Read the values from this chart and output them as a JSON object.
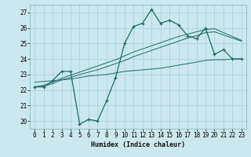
{
  "title": "",
  "xlabel": "Humidex (Indice chaleur)",
  "x": [
    0,
    1,
    2,
    3,
    4,
    5,
    6,
    7,
    8,
    9,
    10,
    11,
    12,
    13,
    14,
    15,
    16,
    17,
    18,
    19,
    20,
    21,
    22,
    23
  ],
  "y_main": [
    22.2,
    22.2,
    22.6,
    23.2,
    23.2,
    19.8,
    20.1,
    20.0,
    21.3,
    22.8,
    25.0,
    26.1,
    26.3,
    27.2,
    26.3,
    26.5,
    26.2,
    25.5,
    25.3,
    26.0,
    24.3,
    24.6,
    24.0,
    24.0
  ],
  "y_line1": [
    22.2,
    22.25,
    22.4,
    22.65,
    22.8,
    23.0,
    23.15,
    23.3,
    23.5,
    23.7,
    23.9,
    24.15,
    24.35,
    24.55,
    24.75,
    24.95,
    25.15,
    25.35,
    25.5,
    25.7,
    25.75,
    25.55,
    25.35,
    25.15
  ],
  "y_line2": [
    22.2,
    22.3,
    22.5,
    22.75,
    22.95,
    23.15,
    23.35,
    23.55,
    23.75,
    23.95,
    24.2,
    24.45,
    24.65,
    24.85,
    25.05,
    25.25,
    25.45,
    25.6,
    25.75,
    25.9,
    25.95,
    25.7,
    25.45,
    25.2
  ],
  "y_flat": [
    22.5,
    22.55,
    22.6,
    22.65,
    22.7,
    22.8,
    22.9,
    22.95,
    23.0,
    23.1,
    23.2,
    23.25,
    23.3,
    23.35,
    23.4,
    23.5,
    23.6,
    23.7,
    23.8,
    23.9,
    23.95,
    23.95,
    24.0,
    24.0
  ],
  "bg_color": "#cce8ef",
  "grid_color": "#a8cdd4",
  "line_color": "#1a6b6b",
  "ylim": [
    19.5,
    27.5
  ],
  "xlim": [
    -0.5,
    23.5
  ],
  "yticks": [
    20,
    21,
    22,
    23,
    24,
    25,
    26,
    27
  ],
  "xticks": [
    0,
    1,
    2,
    3,
    4,
    5,
    6,
    7,
    8,
    9,
    10,
    11,
    12,
    13,
    14,
    15,
    16,
    17,
    18,
    19,
    20,
    21,
    22,
    23
  ],
  "xlabel_fontsize": 6.0,
  "tick_fontsize": 5.5
}
